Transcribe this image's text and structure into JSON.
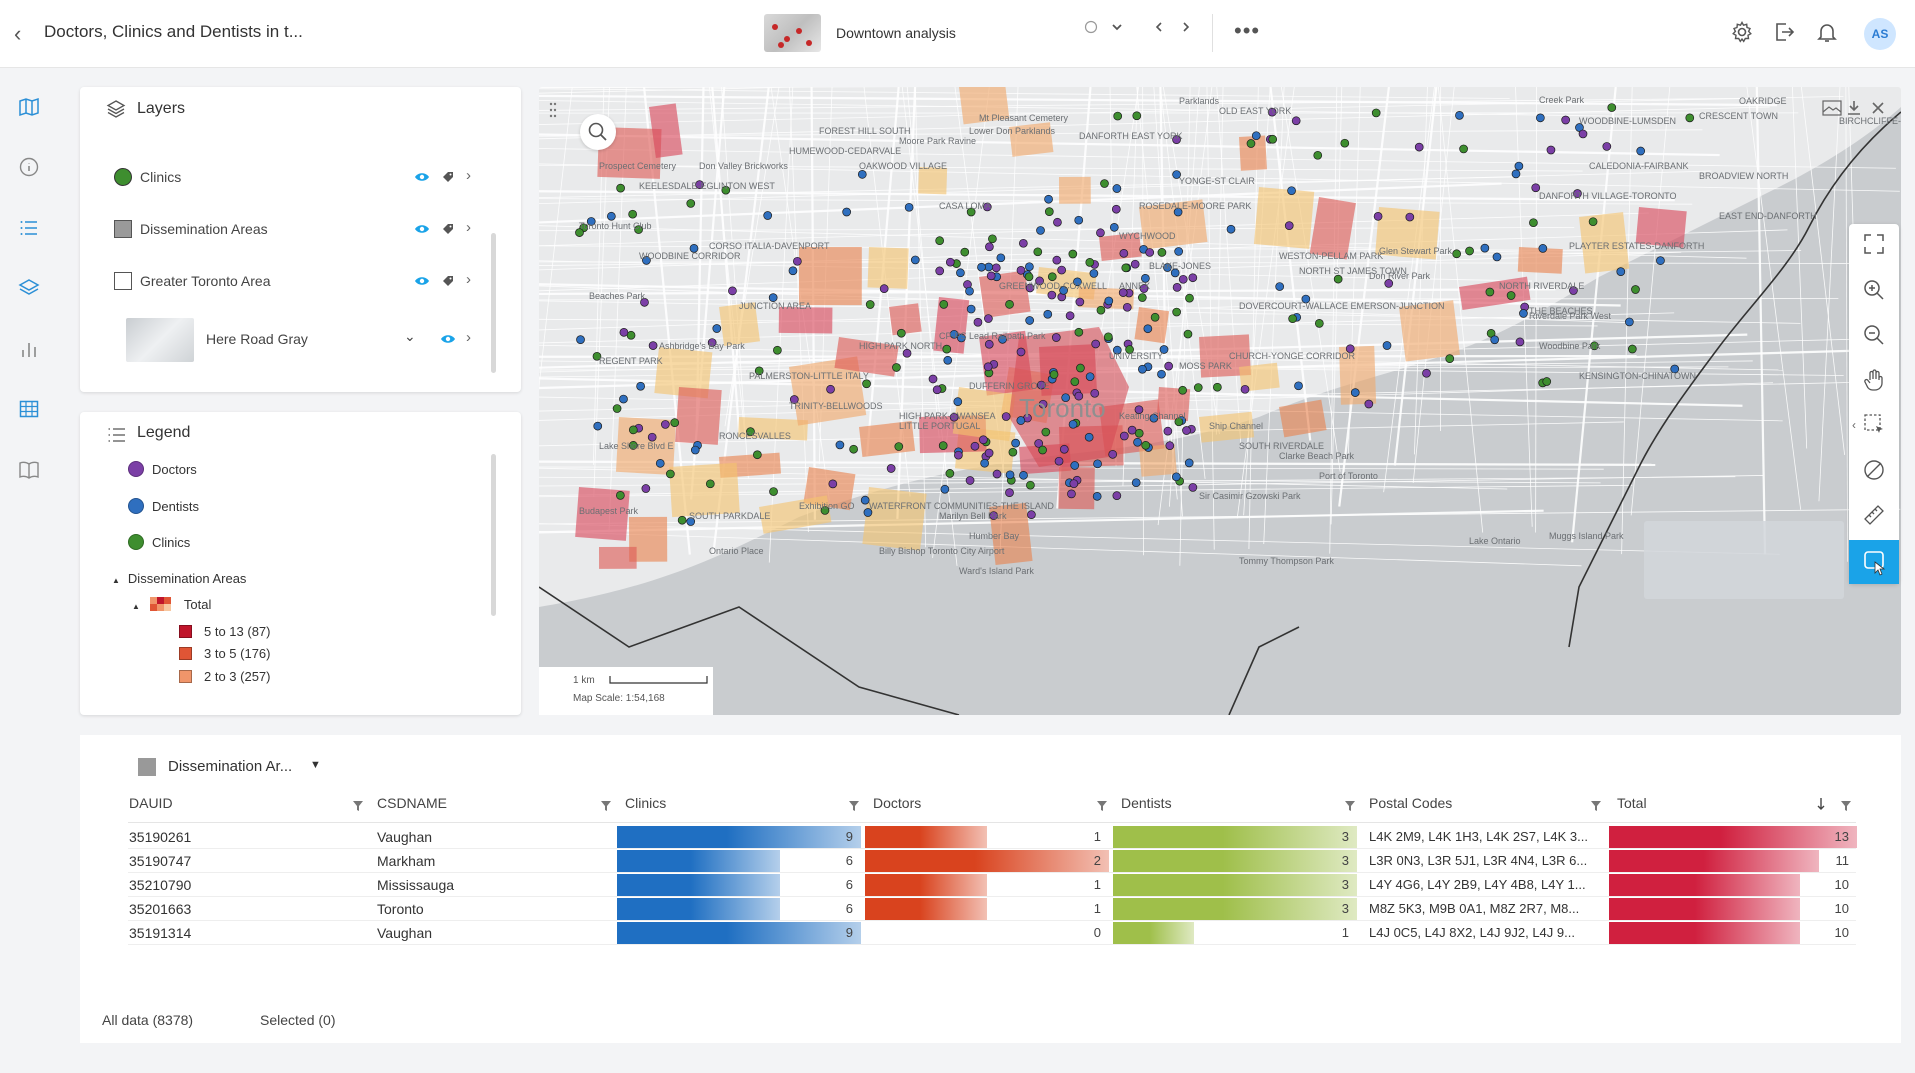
{
  "header": {
    "title": "Doctors, Clinics and Dentists in t...",
    "analysis_name": "Downtown analysis",
    "avatar_initials": "AS",
    "more_label": "•••"
  },
  "layers_panel": {
    "title": "Layers",
    "items": [
      {
        "label": "Clinics",
        "swatch": "#3e8e2f",
        "swatch_shape": "circle"
      },
      {
        "label": "Dissemination Areas",
        "swatch": "#9a9a9a",
        "swatch_shape": "square"
      },
      {
        "label": "Greater Toronto Area",
        "swatch": "#ffffff",
        "swatch_shape": "square"
      },
      {
        "label": "Here Road Gray",
        "swatch": "basemap",
        "swatch_shape": "thumbnail"
      }
    ]
  },
  "legend_panel": {
    "title": "Legend",
    "points": [
      {
        "label": "Doctors",
        "color": "#7b3fa6"
      },
      {
        "label": "Dentists",
        "color": "#2f6fbf"
      },
      {
        "label": "Clinics",
        "color": "#3e8e2f"
      }
    ],
    "group_label": "Dissemination Areas",
    "sub_label": "Total",
    "classes": [
      {
        "label": "5 to 13 (87)",
        "color": "#c0152b"
      },
      {
        "label": "3 to 5 (176)",
        "color": "#e05535"
      },
      {
        "label": "2 to 3 (257)",
        "color": "#f0956a"
      }
    ]
  },
  "map": {
    "center_label": "Toronto",
    "scale_distance": "1 km",
    "scale_text": "Map Scale: 1:54,168",
    "place_labels": [
      "Parklands",
      "OLD EAST YORK",
      "Creek Park",
      "OAKRIDGE",
      "FOREST HILL SOUTH",
      "Mt Pleasant Cemetery",
      "WOODBINE-LUMSDEN",
      "CRESCENT TOWN",
      "BIRCHCLIFFE-CLIFFSIDE",
      "HUMEWOOD-CEDARVALE",
      "Moore Park Ravine",
      "Lower Don Parklands",
      "DANFORTH EAST YORK",
      "CALEDONIA-FAIRBANK",
      "OAKWOOD VILLAGE",
      "YONGE-ST CLAIR",
      "BROADVIEW NORTH",
      "Don Valley Brickworks",
      "Prospect Cemetery",
      "KEELESDALE-EGLINTON WEST",
      "CASA LOMA",
      "ROSEDALE-MOORE PARK",
      "DANFORTH VILLAGE-TORONTO",
      "EAST END-DANFORTH",
      "Toronto Hunt Club",
      "CORSO ITALIA-DAVENPORT",
      "WYCHWOOD",
      "PLAYTER ESTATES-DANFORTH",
      "Glen Stewart Park",
      "WOODBINE CORRIDOR",
      "WESTON-PELLAM PARK",
      "BLAKE-JONES",
      "Don River Park",
      "GREENWOOD-COXWELL",
      "ANNEX",
      "NORTH ST JAMES TOWN",
      "NORTH RIVERDALE",
      "THE BEACHES",
      "Beaches Park",
      "JUNCTION AREA",
      "DOVERCOURT-WALLACE EMERSON-JUNCTION",
      "Riverdale Park West",
      "Woodbine Park",
      "Ashbridge's Bay Park",
      "CP-PS Lead Railpath Park",
      "UNIVERSITY",
      "CHURCH-YONGE CORRIDOR",
      "REGENT PARK",
      "HIGH PARK NORTH",
      "PALMERSTON-LITTLE ITALY",
      "DUFFERIN GROVE",
      "MOSS PARK",
      "KENSINGTON-CHINATOWN",
      "Lake Shore Blvd E",
      "HIGH PARK-SWANSEA",
      "TRINITY-BELLWOODS",
      "LITTLE PORTUGAL",
      "RONCESVALLES",
      "Keating Channel",
      "Ship Channel",
      "SOUTH RIVERDALE",
      "Clarke Beach Park",
      "Port of Toronto",
      "Sir Casimir Gzowski Park",
      "Budapest Park",
      "SOUTH PARKDALE",
      "Exhibition GO",
      "WATERFRONT COMMUNITIES-THE ISLAND",
      "Marilyn Bell Park",
      "Humber Bay",
      "Ontario Place",
      "Billy Bishop Toronto City Airport",
      "Ward's Island Park",
      "Tommy Thompson Park",
      "Lake Ontario",
      "Muggs Island Park"
    ]
  },
  "table": {
    "dataset_label": "Dissemination Ar...",
    "columns": [
      "DAUID",
      "CSDNAME",
      "Clinics",
      "Doctors",
      "Dentists",
      "Postal Codes",
      "Total"
    ],
    "rows": [
      {
        "dauid": "35190261",
        "csdname": "Vaughan",
        "clinics": 9,
        "doctors": 1,
        "dentists": 3,
        "postal": "L4K 2M9, L4K 1H3, L4K 2S7, L4K 3...",
        "total": 13
      },
      {
        "dauid": "35190747",
        "csdname": "Markham",
        "clinics": 6,
        "doctors": 2,
        "dentists": 3,
        "postal": "L3R 0N3, L3R 5J1, L3R 4N4, L3R 6...",
        "total": 11
      },
      {
        "dauid": "35210790",
        "csdname": "Mississauga",
        "clinics": 6,
        "doctors": 1,
        "dentists": 3,
        "postal": "L4Y 4G6, L4Y 2B9, L4Y 4B8, L4Y 1...",
        "total": 10
      },
      {
        "dauid": "35201663",
        "csdname": "Toronto",
        "clinics": 6,
        "doctors": 1,
        "dentists": 3,
        "postal": "M8Z 5K3, M9B 0A1, M8Z 2R7, M8...",
        "total": 10
      },
      {
        "dauid": "35191314",
        "csdname": "Vaughan",
        "clinics": 9,
        "doctors": 0,
        "dentists": 1,
        "postal": "L4J 0C5, L4J 8X2, L4J 9J2, L4J 9...",
        "total": 10
      }
    ],
    "max": {
      "clinics": 9,
      "doctors": 2,
      "dentists": 3,
      "total": 13
    },
    "colors": {
      "clinics": "#1f6fc2",
      "doctors": "#d9431e",
      "dentists": "#9fbf4a",
      "total": "#d0203f"
    },
    "all_data_label": "All data (8378)",
    "selected_label": "Selected (0)"
  }
}
